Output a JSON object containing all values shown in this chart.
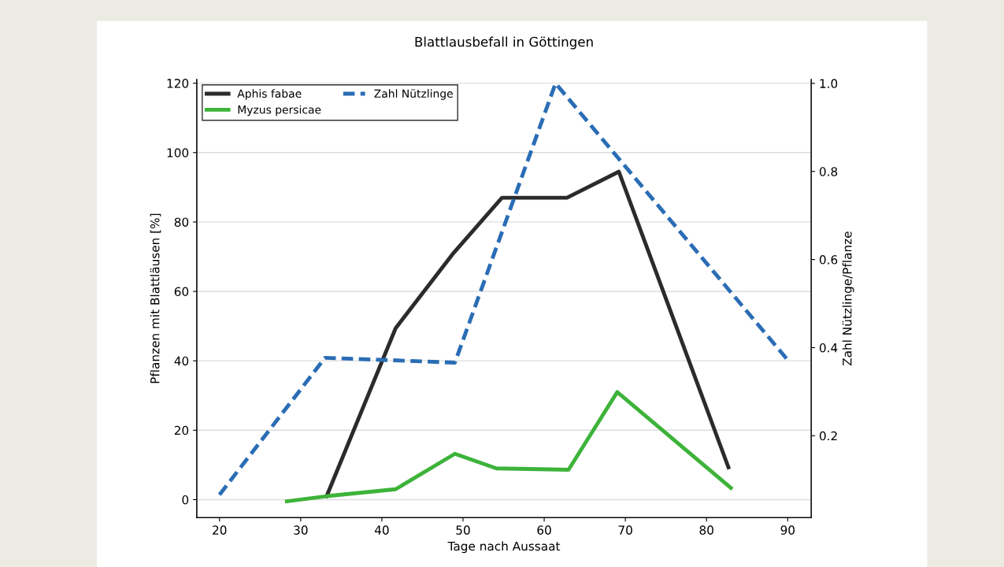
{
  "chart_data": {
    "type": "line",
    "title": "Blattlausbefall in Göttingen",
    "xlabel": "Tage nach Aussaat",
    "ylabel": "Pflanzen mit Blattläusen [%]",
    "y2label": "Zahl Nützlinge/Pflanze",
    "xlim": [
      17.2,
      92.9
    ],
    "xticks": [
      20,
      30,
      40,
      50,
      60,
      70,
      80,
      90
    ],
    "ylim": [
      -5.2,
      121.1
    ],
    "yticks": [
      0,
      20,
      40,
      60,
      80,
      100,
      120
    ],
    "y2lim": [
      0.014,
      1.009
    ],
    "y2ticks": [
      0.2,
      0.4,
      0.6,
      0.8,
      {
        "value": 1.0,
        "label": "1.0"
      }
    ],
    "grid": "y",
    "legend": "top left",
    "line_style": "solid",
    "series": [
      {
        "name": "Aphis fabae",
        "color": "#2b2b2b",
        "x": [
          33.2,
          41.7,
          48.7,
          54.8,
          62.8,
          69.2,
          82.7
        ],
        "values": [
          1,
          49.4,
          70.7,
          87,
          87,
          94.5,
          9.3
        ]
      },
      {
        "name": "Myzus persicae",
        "color": "#3db33a",
        "x": [
          28.3,
          33.2,
          41.7,
          49,
          54.1,
          63,
          69,
          83
        ],
        "values": [
          -0.5,
          1,
          3,
          13.2,
          9,
          8.6,
          31,
          3.4
        ]
      },
      {
        "name": "Zahl Nützlinge",
        "color": "#2a6db5",
        "axis": "y2",
        "line_style": "dashed",
        "x": [
          20,
          33,
          49,
          61.4,
          90
        ],
        "values": [
          0.066,
          0.377,
          0.366,
          1.0,
          0.372
        ]
      }
    ]
  }
}
